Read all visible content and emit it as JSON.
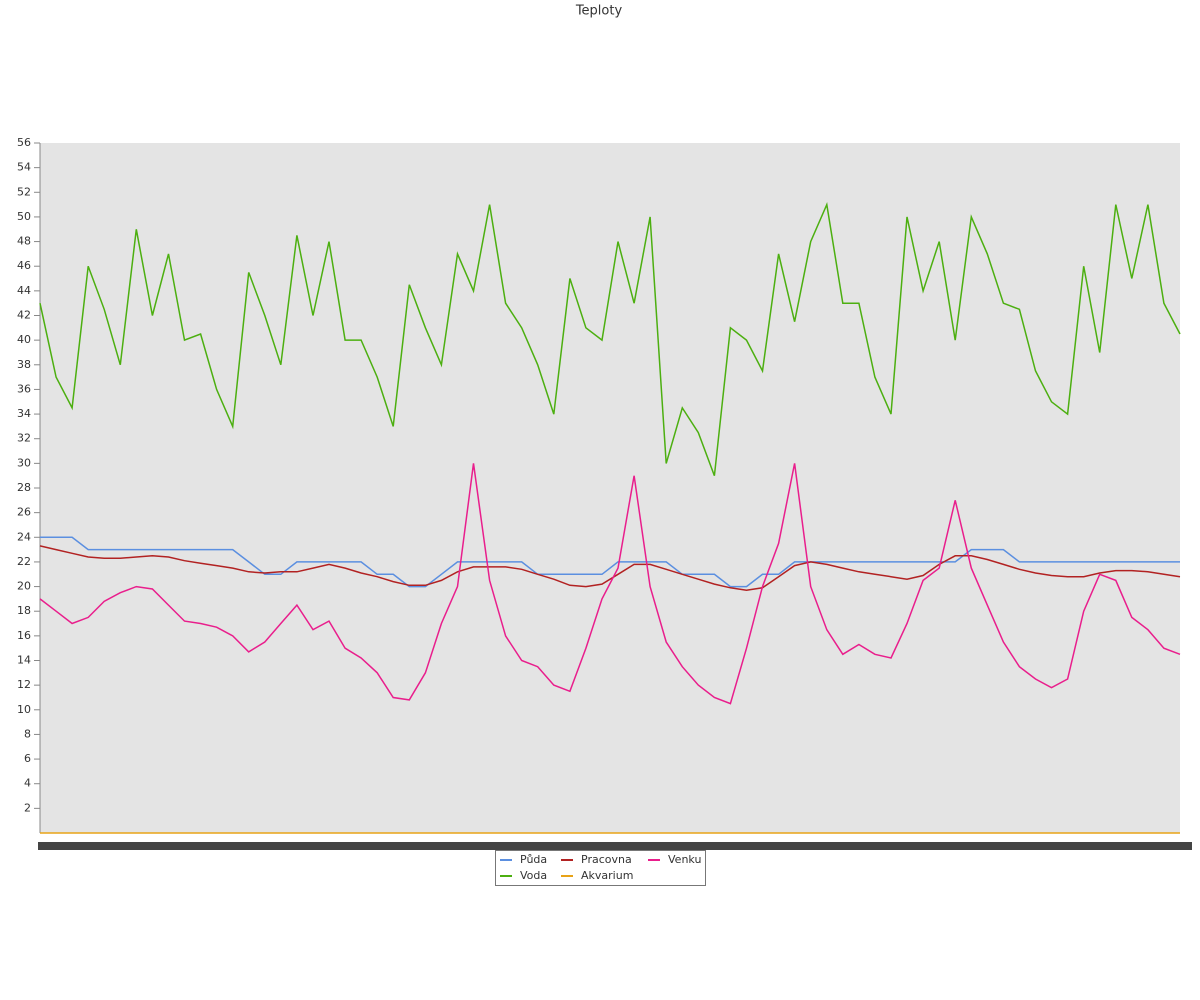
{
  "chart_data": {
    "type": "line",
    "title": "Teploty",
    "categories": [
      null,
      null,
      null,
      null,
      null,
      null,
      null,
      null,
      null,
      null,
      null,
      null,
      null,
      null,
      null,
      null,
      null,
      null,
      null,
      null,
      null,
      null,
      null,
      null,
      null,
      null,
      null,
      null,
      null,
      null,
      null,
      null,
      null,
      null,
      null,
      null,
      null,
      null,
      null,
      null,
      null,
      null,
      null,
      null,
      null,
      null,
      null,
      null,
      null,
      null,
      null,
      null,
      null,
      null,
      null,
      null,
      null,
      null,
      null,
      null,
      null,
      null,
      null,
      null,
      null,
      null,
      null,
      null,
      null,
      null,
      null,
      null
    ],
    "ylim": [
      0,
      56
    ],
    "yticks": [
      2,
      4,
      6,
      8,
      10,
      12,
      14,
      16,
      18,
      20,
      22,
      24,
      26,
      28,
      30,
      32,
      34,
      36,
      38,
      40,
      42,
      44,
      46,
      48,
      50,
      52,
      54,
      56
    ],
    "series": [
      {
        "name": "Půda",
        "color": "#5b8fe0",
        "values": [
          24,
          24,
          24,
          23,
          23,
          23,
          23,
          23,
          23,
          23,
          23,
          23,
          23,
          22,
          21,
          21,
          22,
          22,
          22,
          22,
          22,
          21,
          21,
          20,
          20,
          21,
          22,
          22,
          22,
          22,
          22,
          21,
          21,
          21,
          21,
          21,
          22,
          22,
          22,
          22,
          21,
          21,
          21,
          20,
          20,
          21,
          21,
          22,
          22,
          22,
          22,
          22,
          22,
          22,
          22,
          22,
          22,
          22,
          23,
          23,
          23,
          22,
          22,
          22,
          22,
          22,
          22,
          22,
          22,
          22,
          22,
          22
        ]
      },
      {
        "name": "Voda",
        "color": "#4caf10",
        "values": [
          43,
          37,
          34.5,
          46,
          42.5,
          38,
          49,
          42,
          47,
          40,
          40.5,
          36,
          33,
          45.5,
          42,
          38,
          48.5,
          42,
          48,
          40,
          40,
          37,
          33,
          44.5,
          41,
          38,
          47,
          44,
          51,
          43,
          41,
          38,
          34,
          45,
          41,
          40,
          48,
          43,
          50,
          30,
          34.5,
          32.5,
          29,
          41,
          40,
          37.5,
          47,
          41.5,
          48,
          51,
          43,
          43,
          37,
          34,
          50,
          44,
          48,
          40,
          50,
          47,
          43,
          42.5,
          37.5,
          35,
          34,
          46,
          39,
          51,
          45,
          51,
          43,
          40.5
        ]
      },
      {
        "name": "Pracovna",
        "color": "#b22222",
        "values": [
          23.3,
          23,
          22.7,
          22.4,
          22.3,
          22.3,
          22.4,
          22.5,
          22.4,
          22.1,
          21.9,
          21.7,
          21.5,
          21.2,
          21.1,
          21.2,
          21.2,
          21.5,
          21.8,
          21.5,
          21.1,
          20.8,
          20.4,
          20.1,
          20.1,
          20.5,
          21.2,
          21.6,
          21.6,
          21.6,
          21.4,
          21,
          20.6,
          20.1,
          20,
          20.2,
          21,
          21.8,
          21.8,
          21.4,
          21,
          20.6,
          20.2,
          19.9,
          19.7,
          19.9,
          20.8,
          21.7,
          22,
          21.8,
          21.5,
          21.2,
          21,
          20.8,
          20.6,
          20.9,
          21.8,
          22.5,
          22.5,
          22.2,
          21.8,
          21.4,
          21.1,
          20.9,
          20.8,
          20.8,
          21.1,
          21.3,
          21.3,
          21.2,
          21,
          20.8
        ]
      },
      {
        "name": "Akvarium",
        "color": "#e8a317",
        "values": [
          0,
          0,
          0,
          0,
          0,
          0,
          0,
          0,
          0,
          0,
          0,
          0,
          0,
          0,
          0,
          0,
          0,
          0,
          0,
          0,
          0,
          0,
          0,
          0,
          0,
          0,
          0,
          0,
          0,
          0,
          0,
          0,
          0,
          0,
          0,
          0,
          0,
          0,
          0,
          0,
          0,
          0,
          0,
          0,
          0,
          0,
          0,
          0,
          0,
          0,
          0,
          0,
          0,
          0,
          0,
          0,
          0,
          0,
          0,
          0,
          0,
          0,
          0,
          0,
          0,
          0,
          0,
          0,
          0,
          0,
          0,
          0
        ]
      },
      {
        "name": "Venku",
        "color": "#e91e8c",
        "values": [
          19,
          18,
          17,
          17.5,
          18.8,
          19.5,
          20,
          19.8,
          18.5,
          17.2,
          17,
          16.7,
          16,
          14.7,
          15.5,
          17,
          18.5,
          16.5,
          17.2,
          15,
          14.2,
          13,
          11,
          10.8,
          13,
          17,
          20,
          30,
          20.5,
          16,
          14,
          13.5,
          12,
          11.5,
          15,
          19,
          21.5,
          29,
          20,
          15.5,
          13.5,
          12,
          11,
          10.5,
          15,
          20,
          23.5,
          30,
          20,
          16.5,
          14.5,
          15.3,
          14.5,
          14.2,
          17,
          20.5,
          21.5,
          27,
          21.5,
          18.5,
          15.5,
          13.5,
          12.5,
          11.8,
          12.5,
          18,
          21,
          20.5,
          17.5,
          16.5,
          15,
          14.5
        ]
      }
    ]
  }
}
